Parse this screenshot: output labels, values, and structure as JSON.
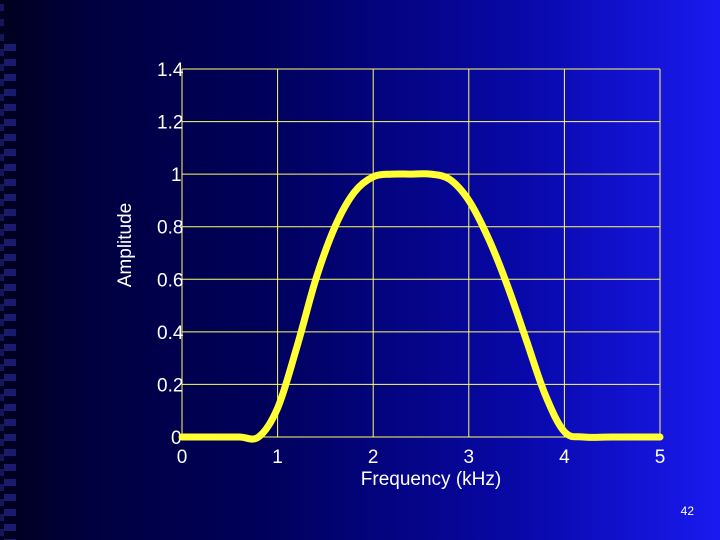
{
  "slide": {
    "number": "42"
  },
  "chart_data": {
    "type": "line",
    "title": "",
    "xlabel": "Frequency (kHz)",
    "ylabel": "Amplitude",
    "xlim": [
      0,
      5
    ],
    "ylim": [
      0,
      1.4
    ],
    "x_ticks": [
      "0",
      "1",
      "2",
      "3",
      "4",
      "5"
    ],
    "y_ticks": [
      "0",
      "0.2",
      "0.4",
      "0.6",
      "0.8",
      "1",
      "1.2",
      "1.4"
    ],
    "grid": true,
    "legend": "none",
    "colors": {
      "line": "#ffff33",
      "grid": "#ffff66",
      "text": "#ffffff"
    },
    "series": [
      {
        "x": [
          0,
          0.3,
          0.6,
          0.8,
          1.0,
          1.2,
          1.4,
          1.6,
          1.8,
          2.0,
          2.2,
          2.4,
          2.6,
          2.8,
          3.0,
          3.2,
          3.4,
          3.6,
          3.8,
          4.0,
          4.2,
          4.5,
          5.0
        ],
        "y": [
          0,
          0,
          0,
          0,
          0.11,
          0.34,
          0.6,
          0.8,
          0.93,
          0.99,
          1.0,
          1.0,
          1.0,
          0.98,
          0.9,
          0.76,
          0.58,
          0.37,
          0.16,
          0.02,
          0,
          0,
          0
        ]
      }
    ]
  }
}
